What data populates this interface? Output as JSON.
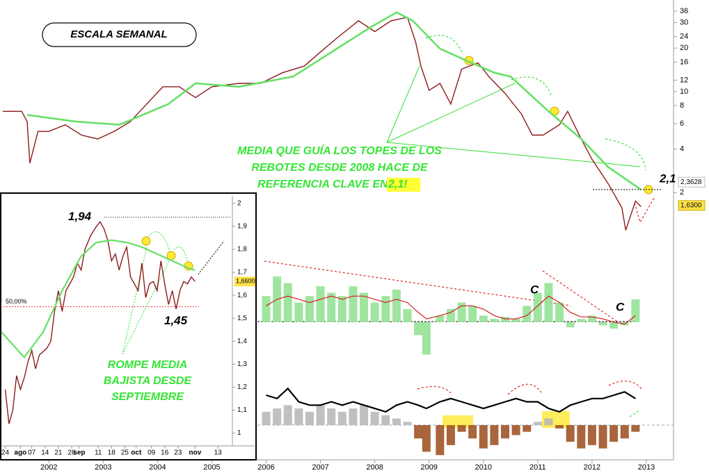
{
  "chart_data": [
    {
      "type": "line",
      "title": "ESCALA SEMANAL",
      "log_scale": true,
      "notes": [
        "MEDIA QUE GUÍA LOS TOPES DE LOS",
        "REBOTES DESDE 2008 HACE DE",
        "REFERENCIA CLAVE EN "
      ],
      "note_highlight": "2,1!",
      "xlim": [
        2001.1,
        2013.5
      ],
      "ylim": [
        1,
        43
      ],
      "xticks": [
        2002,
        2003,
        2004,
        2005,
        2006,
        2007,
        2008,
        2009,
        2010,
        2011,
        2012,
        2013
      ],
      "yticks": [
        2,
        4,
        6,
        8,
        10,
        12,
        16,
        20,
        24,
        30,
        36
      ],
      "reference": {
        "value": 2.1,
        "label": "2,1"
      },
      "last_values": [
        {
          "value": 2.3628,
          "label": "2,3628",
          "color": "#2e9e2e"
        },
        {
          "value": 1.63,
          "label": "1,6300",
          "color": "#ffe24a"
        }
      ],
      "series": [
        {
          "color": "#8b1a1a",
          "x": [
            2001.15,
            2001.5,
            2001.6,
            2001.65,
            2001.8,
            2002.0,
            2002.3,
            2002.6,
            2002.9,
            2003.2,
            2003.5,
            2003.8,
            2004.1,
            2004.4,
            2004.7,
            2005.0,
            2005.5,
            2005.9,
            2006.3,
            2006.7,
            2007.0,
            2007.3,
            2007.7,
            2008.0,
            2008.3,
            2008.6,
            2008.75,
            2008.85,
            2009.0,
            2009.2,
            2009.4,
            2009.6,
            2009.9,
            2010.1,
            2010.4,
            2010.7,
            2010.9,
            2011.1,
            2011.4,
            2011.55,
            2011.8,
            2012.0,
            2012.3,
            2012.55,
            2012.62,
            2012.8,
            2012.9
          ],
          "values": [
            7.3,
            7.3,
            6.2,
            3.2,
            5.3,
            5.3,
            5.9,
            5.0,
            4.7,
            5.3,
            6.2,
            8.2,
            10.8,
            10.8,
            9.1,
            10.8,
            11.4,
            11.4,
            13.5,
            15,
            18.8,
            23.4,
            30.9,
            26,
            30.9,
            32.6,
            22.2,
            15,
            10.2,
            11.4,
            8.2,
            14.3,
            15.8,
            12.7,
            9.7,
            7.0,
            5.0,
            5.0,
            5.9,
            7.3,
            4.7,
            3.4,
            2.3,
            1.57,
            1.1,
            1.75,
            1.6
          ]
        },
        {
          "color": "#66e066",
          "x": [
            2001.6,
            2002.5,
            2003.3,
            2004.2,
            2004.7,
            2005.5,
            2006.5,
            2007.3,
            2007.9,
            2008.4,
            2008.7,
            2009.2,
            2009.7,
            2010.2,
            2010.5,
            2011.2,
            2011.8,
            2012.3,
            2012.9
          ],
          "values": [
            6.9,
            6.2,
            5.9,
            8.2,
            11.4,
            10.8,
            12.7,
            19.8,
            27.5,
            35.3,
            30.9,
            19.8,
            16.3,
            13.5,
            12.7,
            7.3,
            4.7,
            3.0,
            2.1
          ]
        }
      ]
    },
    {
      "type": "bar",
      "ylim": [
        -60,
        100
      ],
      "annotations": [
        "C",
        "C"
      ],
      "x": [
        2006.0,
        2006.2,
        2006.4,
        2006.6,
        2006.8,
        2007.0,
        2007.2,
        2007.4,
        2007.6,
        2007.8,
        2008.0,
        2008.2,
        2008.4,
        2008.6,
        2008.8,
        2008.95,
        2009.2,
        2009.4,
        2009.6,
        2009.8,
        2010.0,
        2010.2,
        2010.4,
        2010.6,
        2010.8,
        2011.0,
        2011.2,
        2011.4,
        2011.6,
        2011.8,
        2012.0,
        2012.2,
        2012.4,
        2012.6,
        2012.8
      ],
      "series": [
        {
          "style": "bar",
          "color": "#8ee08e",
          "values": [
            40,
            70,
            60,
            30,
            40,
            55,
            45,
            40,
            55,
            45,
            30,
            40,
            50,
            20,
            -20,
            -50,
            10,
            20,
            30,
            25,
            10,
            5,
            8,
            5,
            25,
            45,
            60,
            30,
            -8,
            5,
            10,
            -5,
            -10,
            -5,
            35
          ]
        },
        {
          "style": "line",
          "color": "#d42020",
          "values": [
            25,
            35,
            40,
            35,
            30,
            35,
            40,
            35,
            40,
            40,
            35,
            30,
            35,
            30,
            15,
            5,
            10,
            15,
            25,
            25,
            20,
            10,
            5,
            5,
            10,
            25,
            40,
            30,
            15,
            8,
            8,
            5,
            0,
            -3,
            10
          ]
        }
      ]
    },
    {
      "type": "bar",
      "ylim": [
        -50,
        70
      ],
      "x": [
        2006.0,
        2006.2,
        2006.4,
        2006.6,
        2006.8,
        2007.0,
        2007.2,
        2007.4,
        2007.6,
        2007.8,
        2008.0,
        2008.2,
        2008.4,
        2008.6,
        2008.8,
        2008.95,
        2009.2,
        2009.4,
        2009.6,
        2009.8,
        2010.0,
        2010.2,
        2010.4,
        2010.6,
        2010.8,
        2011.0,
        2011.2,
        2011.4,
        2011.6,
        2011.8,
        2012.0,
        2012.2,
        2012.4,
        2012.6,
        2012.8
      ],
      "series": [
        {
          "style": "bar",
          "color": "#9a4a1a",
          "positive_color": "#b5b5b5",
          "values": [
            20,
            25,
            30,
            25,
            20,
            30,
            25,
            20,
            25,
            30,
            20,
            15,
            10,
            5,
            -20,
            -40,
            -45,
            -30,
            -10,
            -20,
            -35,
            -30,
            -20,
            -15,
            -10,
            5,
            10,
            -5,
            -25,
            -35,
            -30,
            -35,
            -25,
            -20,
            -10
          ]
        },
        {
          "style": "line",
          "color": "#000000",
          "values": [
            45,
            40,
            55,
            35,
            30,
            30,
            35,
            30,
            35,
            30,
            25,
            20,
            30,
            35,
            30,
            25,
            35,
            40,
            35,
            30,
            25,
            30,
            35,
            40,
            35,
            35,
            25,
            20,
            30,
            35,
            40,
            40,
            45,
            50,
            40
          ]
        }
      ]
    },
    {
      "type": "line",
      "xlim": [
        -2,
        120
      ],
      "ylim": [
        0.95,
        2.03
      ],
      "xticks": [
        {
          "value": 0,
          "label": "24"
        },
        {
          "value": 8,
          "label": "ago"
        },
        {
          "value": 14,
          "label": "07"
        },
        {
          "value": 21,
          "label": "14"
        },
        {
          "value": 28,
          "label": "21"
        },
        {
          "value": 35,
          "label": "28"
        },
        {
          "value": 39,
          "label": "sep"
        },
        {
          "value": 49,
          "label": "11"
        },
        {
          "value": 56,
          "label": "18"
        },
        {
          "value": 63,
          "label": "25"
        },
        {
          "value": 69,
          "label": "oct"
        },
        {
          "value": 77,
          "label": "09"
        },
        {
          "value": 84,
          "label": "16"
        },
        {
          "value": 91,
          "label": "23"
        },
        {
          "value": 100,
          "label": "nov"
        },
        {
          "value": 112,
          "label": "13"
        }
      ],
      "yticks": [
        1,
        {
          "value": 1.1,
          "label": "1,1"
        },
        {
          "value": 1.2,
          "label": "1,2"
        },
        {
          "value": 1.3,
          "label": "1,3"
        },
        {
          "value": 1.4,
          "label": "1,4"
        },
        {
          "value": 1.5,
          "label": "1,5"
        },
        {
          "value": 1.6,
          "label": "1,6"
        },
        {
          "value": 1.7,
          "label": "1,7"
        },
        {
          "value": 1.8,
          "label": "1,8"
        },
        {
          "value": 1.9,
          "label": "1,9"
        },
        2
      ],
      "high": {
        "value": 1.94,
        "label": "1,94"
      },
      "low": {
        "value": 1.45,
        "label": "1,45"
      },
      "fib": {
        "value": 1.55,
        "label": "50,00%"
      },
      "last_value": {
        "value": 1.66,
        "label": "1,6600"
      },
      "notes": [
        "ROMPE MEDIA",
        "BAJISTA DESDE",
        "SEPTIEMBRE"
      ],
      "series": [
        {
          "color": "#8b1a1a",
          "x": [
            0,
            2,
            4,
            6,
            8,
            10,
            12,
            14,
            16,
            18,
            22,
            24,
            26,
            28,
            30,
            32,
            34,
            36,
            38,
            40,
            42,
            45,
            48,
            50,
            52,
            54,
            56,
            58,
            60,
            62,
            64,
            66,
            68,
            70,
            72,
            74,
            76,
            78,
            80,
            82,
            84,
            86,
            88,
            90,
            92,
            94,
            96,
            98,
            100
          ],
          "values": [
            1.19,
            1.04,
            1.1,
            1.25,
            1.19,
            1.24,
            1.31,
            1.36,
            1.28,
            1.34,
            1.37,
            1.4,
            1.53,
            1.62,
            1.53,
            1.62,
            1.65,
            1.68,
            1.74,
            1.71,
            1.8,
            1.86,
            1.9,
            1.92,
            1.89,
            1.84,
            1.75,
            1.78,
            1.71,
            1.77,
            1.81,
            1.68,
            1.65,
            1.62,
            1.74,
            1.59,
            1.65,
            1.66,
            1.62,
            1.75,
            1.65,
            1.56,
            1.62,
            1.54,
            1.62,
            1.66,
            1.65,
            1.68,
            1.66
          ]
        },
        {
          "color": "#66e066",
          "x": [
            -2,
            10,
            20,
            30,
            40,
            48,
            56,
            64,
            72,
            80,
            88,
            96,
            100
          ],
          "values": [
            1.44,
            1.33,
            1.44,
            1.62,
            1.77,
            1.83,
            1.84,
            1.83,
            1.81,
            1.78,
            1.75,
            1.72,
            1.71
          ]
        }
      ]
    }
  ]
}
